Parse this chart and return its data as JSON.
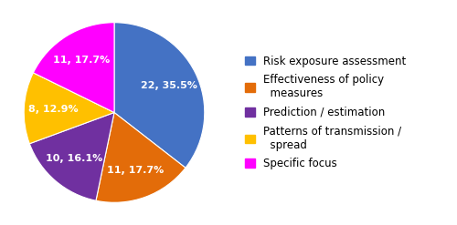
{
  "slices": [
    {
      "label": "Risk exposure assessment",
      "count": 22,
      "pct": 35.5,
      "color": "#4472C4"
    },
    {
      "label": "Effectiveness of policy measures",
      "count": 11,
      "pct": 17.7,
      "color": "#E36C09"
    },
    {
      "label": "Prediction / estimation",
      "count": 10,
      "pct": 16.1,
      "color": "#7030A0"
    },
    {
      "label": "Patterns of transmission / spread",
      "count": 8,
      "pct": 12.9,
      "color": "#FFC000"
    },
    {
      "label": "Specific focus",
      "count": 11,
      "pct": 17.7,
      "color": "#FF00FF"
    }
  ],
  "legend_labels": [
    "Risk exposure assessment",
    "Effectiveness of policy\n  measures",
    "Prediction / estimation",
    "Patterns of transmission /\n  spread",
    "Specific focus"
  ],
  "legend_colors": [
    "#4472C4",
    "#E36C09",
    "#7030A0",
    "#FFC000",
    "#FF00FF"
  ],
  "startangle": 90,
  "label_fontsize": 8.0,
  "legend_fontsize": 8.5
}
